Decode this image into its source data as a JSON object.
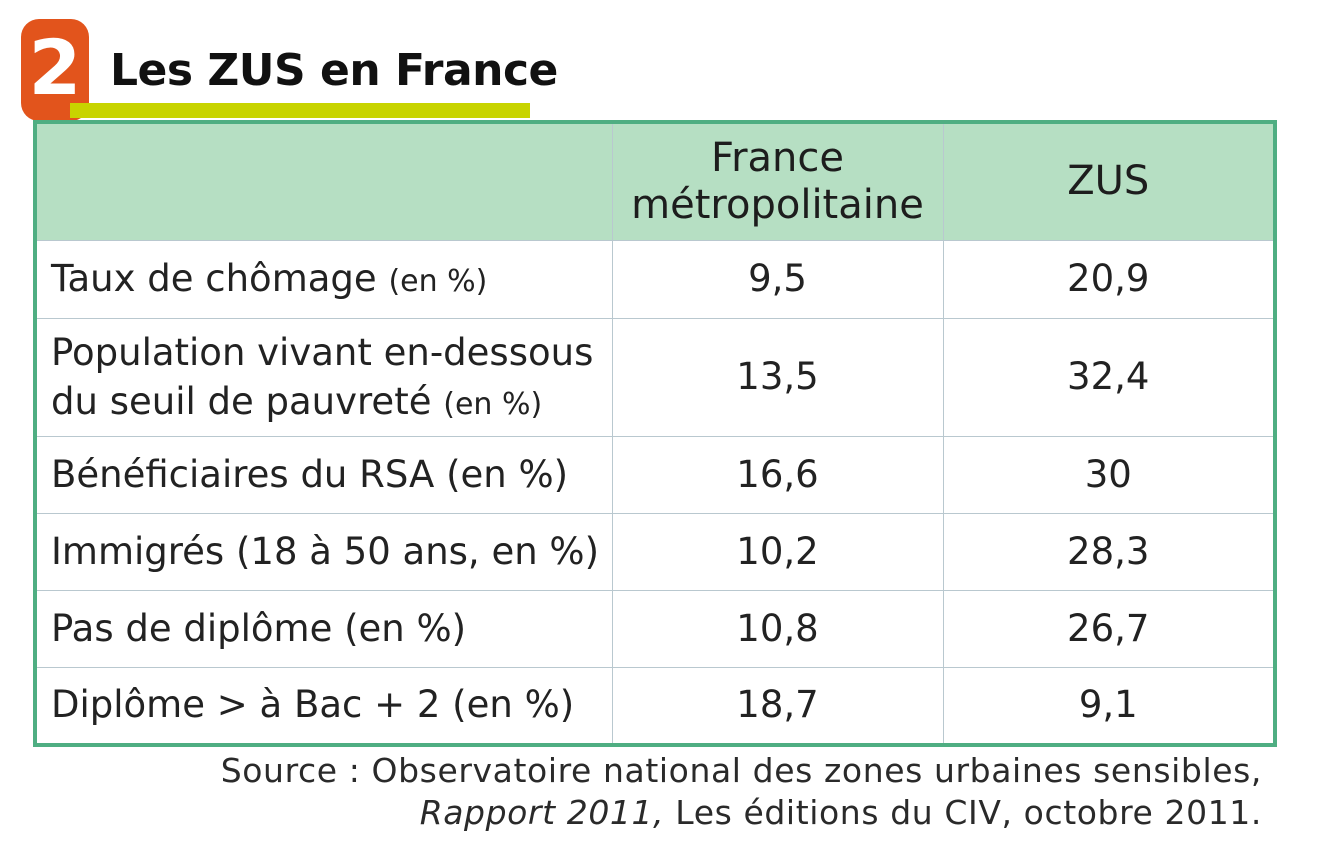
{
  "badge": {
    "number": "2"
  },
  "title": "Les ZUS en France",
  "colors": {
    "badge": "#e2541c",
    "underline": "#c8d400",
    "header_bg": "#b6dfc3",
    "table_border": "#4fae82"
  },
  "table": {
    "columns": [
      "",
      "France métropolitaine",
      "ZUS"
    ],
    "rows": [
      {
        "label": "Taux de chômage",
        "unit": "(en %)",
        "france": "9,5",
        "zus": "20,9"
      },
      {
        "label": "Population vivant en-dessous du seuil de pauvreté",
        "unit": "(en %)",
        "france": "13,5",
        "zus": "32,4"
      },
      {
        "label": "Bénéficiaires du RSA (en %)",
        "unit": "",
        "france": "16,6",
        "zus": "30"
      },
      {
        "label": "Immigrés (18 à 50 ans, en %)",
        "unit": "",
        "france": "10,2",
        "zus": "28,3"
      },
      {
        "label": "Pas de diplôme (en %)",
        "unit": "",
        "france": "10,8",
        "zus": "26,7"
      },
      {
        "label": "Diplôme > à Bac + 2 (en %)",
        "unit": "",
        "france": "18,7",
        "zus": "9,1"
      }
    ]
  },
  "source": {
    "line1": "Source  : Observatoire national des zones urbaines sensibles,",
    "report": "Rapport 2011,",
    "line2_rest": " Les éditions du CIV, octobre  2011."
  }
}
